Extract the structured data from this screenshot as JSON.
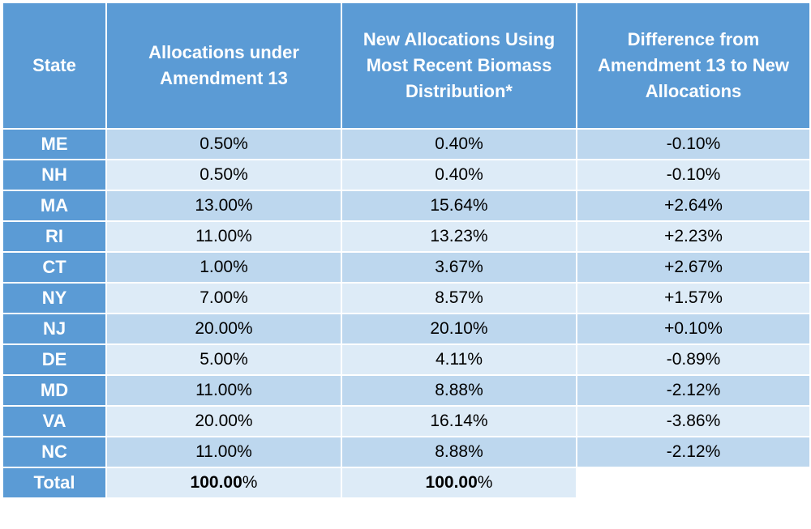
{
  "table": {
    "headers": [
      "State",
      "Allocations under\nAmendment 13",
      "New Allocations  Using\nMost Recent Biomass\nDistribution*",
      "Difference from\nAmendment 13 to New\nAllocations"
    ],
    "rows": [
      {
        "state": "ME",
        "amendment13": "0.50%",
        "new_allocation": "0.40%",
        "difference": "-0.10%"
      },
      {
        "state": "NH",
        "amendment13": "0.50%",
        "new_allocation": "0.40%",
        "difference": "-0.10%"
      },
      {
        "state": "MA",
        "amendment13": "13.00%",
        "new_allocation": "15.64%",
        "difference": "+2.64%"
      },
      {
        "state": "RI",
        "amendment13": "11.00%",
        "new_allocation": "13.23%",
        "difference": "+2.23%"
      },
      {
        "state": "CT",
        "amendment13": "1.00%",
        "new_allocation": "3.67%",
        "difference": "+2.67%"
      },
      {
        "state": "NY",
        "amendment13": "7.00%",
        "new_allocation": "8.57%",
        "difference": "+1.57%"
      },
      {
        "state": "NJ",
        "amendment13": "20.00%",
        "new_allocation": "20.10%",
        "difference": "+0.10%"
      },
      {
        "state": "DE",
        "amendment13": "5.00%",
        "new_allocation": "4.11%",
        "difference": "-0.89%"
      },
      {
        "state": "MD",
        "amendment13": "11.00%",
        "new_allocation": "8.88%",
        "difference": "-2.12%"
      },
      {
        "state": "VA",
        "amendment13": "20.00%",
        "new_allocation": "16.14%",
        "difference": "-3.86%"
      },
      {
        "state": "NC",
        "amendment13": "11.00%",
        "new_allocation": "8.88%",
        "difference": "-2.12%"
      }
    ],
    "total": {
      "label": "Total",
      "amendment13_number": "100.00",
      "amendment13_suffix": "%",
      "new_allocation_number": "100.00",
      "new_allocation_suffix": "%"
    }
  },
  "colors": {
    "header_bg": "#5b9bd5",
    "row_dark": "#bdd7ee",
    "row_light": "#ddebf7",
    "header_text": "#ffffff"
  }
}
